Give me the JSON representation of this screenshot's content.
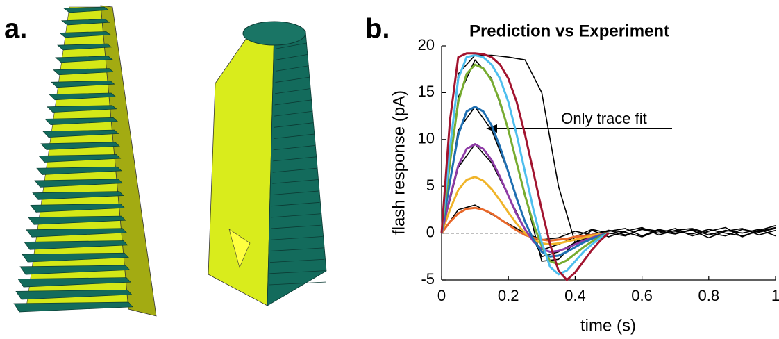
{
  "panel_labels": [
    "a.",
    "b."
  ],
  "chart_data": {
    "type": "line",
    "title": "Prediction vs Experiment",
    "x_label": "time (s)",
    "y_label": "flash response (pA)",
    "annotation": "Only trace fit",
    "xlim": [
      0,
      1
    ],
    "xticks": [
      0,
      0.2,
      0.4,
      0.6,
      0.8,
      1
    ],
    "ylim": [
      -5,
      20
    ],
    "yticks": [
      -5,
      0,
      5,
      10,
      15,
      20
    ],
    "dashed_line": {
      "y": 0,
      "x": [
        0,
        0.5
      ],
      "color": "#000000"
    },
    "series": [
      {
        "color": "#000000",
        "x": [
          0,
          0.05,
          0.1,
          0.15,
          0.2,
          0.25,
          0.3,
          0.35,
          0.4,
          0.45,
          0.5,
          0.55,
          0.6,
          0.65,
          0.7,
          0.75,
          0.8,
          0.85,
          0.9,
          0.95,
          1
        ],
        "values": [
          0,
          17,
          19,
          19,
          18.8,
          18.5,
          15,
          5,
          -1,
          -0.5,
          0.3,
          -0.2,
          0.4,
          0,
          0.5,
          -0.3,
          0.2,
          0.6,
          -0.4,
          0.3,
          0.8
        ]
      },
      {
        "color": "#000000",
        "x": [
          0,
          0.05,
          0.1,
          0.15,
          0.2,
          0.25,
          0.3,
          0.35,
          0.4,
          0.45,
          0.5,
          0.55,
          0.6,
          0.65,
          0.7,
          0.75,
          0.8,
          0.85,
          0.9,
          0.95,
          1
        ],
        "values": [
          0,
          11,
          13.5,
          11,
          6.5,
          1.2,
          -2.5,
          -2,
          -1,
          -0.3,
          0.2,
          0.5,
          -0.3,
          0.4,
          0,
          0.3,
          -0.5,
          0.2,
          0.5,
          -0.2,
          0.3
        ]
      },
      {
        "color": "#000000",
        "x": [
          0,
          0.05,
          0.1,
          0.15,
          0.2,
          0.25,
          0.3,
          0.35,
          0.4,
          0.45,
          0.5,
          0.55,
          0.6,
          0.65,
          0.7,
          0.75,
          0.8,
          0.85,
          0.9,
          0.95,
          1
        ],
        "values": [
          0,
          14.5,
          18.5,
          16.5,
          11,
          4,
          -3,
          -2.8,
          -1,
          0.3,
          -0.4,
          0.2,
          0.6,
          -0.2,
          0.3,
          0.5,
          0,
          -0.3,
          0.4,
          0.1,
          0.5
        ]
      },
      {
        "color": "#000000",
        "x": [
          0,
          0.05,
          0.1,
          0.15,
          0.2,
          0.25,
          0.3,
          0.35,
          0.4,
          0.45,
          0.5,
          0.55,
          0.6,
          0.65,
          0.7,
          0.75,
          0.8,
          0.85,
          0.9,
          0.95,
          1
        ],
        "values": [
          0,
          7,
          9.5,
          7.5,
          4,
          0.4,
          -1.8,
          -1.2,
          -0.4,
          0.4,
          0,
          -0.3,
          0.5,
          0.2,
          -0.1,
          0.4,
          -0.2,
          0.3,
          0,
          0.4,
          -0.3
        ]
      },
      {
        "color": "#000000",
        "x": [
          0,
          0.05,
          0.1,
          0.15,
          0.2,
          0.25,
          0.3,
          0.35,
          0.4,
          0.45,
          0.5,
          0.55,
          0.6,
          0.65,
          0.7,
          0.75,
          0.8,
          0.85,
          0.9,
          0.95,
          1
        ],
        "values": [
          0,
          2.5,
          3,
          2,
          1,
          0,
          -0.7,
          -0.5,
          0.2,
          -0.2,
          0.3,
          0.1,
          -0.4,
          0.3,
          0.2,
          -0.1,
          0.4,
          0,
          -0.3,
          0.2,
          0.6
        ]
      },
      {
        "color": "#e8682a",
        "x": [
          0,
          0.025,
          0.05,
          0.075,
          0.1,
          0.125,
          0.15,
          0.175,
          0.2,
          0.225,
          0.25,
          0.275,
          0.3,
          0.325,
          0.35,
          0.375,
          0.4,
          0.425,
          0.45,
          0.475,
          0.5
        ],
        "values": [
          0,
          1.2,
          2.1,
          2.6,
          2.7,
          2.5,
          2.1,
          1.5,
          0.9,
          0.3,
          -0.2,
          -0.5,
          -0.7,
          -0.8,
          -0.7,
          -0.6,
          -0.4,
          -0.3,
          -0.2,
          -0.1,
          0
        ]
      },
      {
        "color": "#f0b429",
        "x": [
          0,
          0.025,
          0.05,
          0.075,
          0.1,
          0.125,
          0.15,
          0.175,
          0.2,
          0.225,
          0.25,
          0.275,
          0.3,
          0.325,
          0.35,
          0.375,
          0.4,
          0.425,
          0.45,
          0.475,
          0.5
        ],
        "values": [
          0,
          2.5,
          4.6,
          5.7,
          6.0,
          5.6,
          4.7,
          3.5,
          2.2,
          1.0,
          0,
          -0.7,
          -1.1,
          -1.2,
          -1.1,
          -0.9,
          -0.7,
          -0.5,
          -0.3,
          -0.1,
          0
        ]
      },
      {
        "color": "#8e3ba6",
        "x": [
          0,
          0.025,
          0.05,
          0.075,
          0.1,
          0.125,
          0.15,
          0.175,
          0.2,
          0.225,
          0.25,
          0.275,
          0.3,
          0.325,
          0.35,
          0.375,
          0.4,
          0.425,
          0.45,
          0.475,
          0.5
        ],
        "values": [
          0,
          3.8,
          7.2,
          9.0,
          9.5,
          9.0,
          7.8,
          6.0,
          4.0,
          2.0,
          0.4,
          -0.9,
          -1.7,
          -2.0,
          -1.9,
          -1.6,
          -1.2,
          -0.8,
          -0.5,
          -0.2,
          0
        ]
      },
      {
        "color": "#1f6fb2",
        "x": [
          0,
          0.025,
          0.05,
          0.075,
          0.1,
          0.125,
          0.15,
          0.175,
          0.2,
          0.225,
          0.25,
          0.275,
          0.3,
          0.325,
          0.35,
          0.375,
          0.4,
          0.425,
          0.45,
          0.475,
          0.5
        ],
        "values": [
          0,
          5.5,
          10.5,
          13.0,
          13.5,
          13.0,
          11.5,
          9.2,
          6.5,
          3.7,
          1.2,
          -0.7,
          -2.0,
          -2.5,
          -2.4,
          -2.0,
          -1.5,
          -1.0,
          -0.6,
          -0.3,
          0
        ]
      },
      {
        "color": "#77ac30",
        "x": [
          0,
          0.025,
          0.05,
          0.075,
          0.1,
          0.125,
          0.15,
          0.175,
          0.2,
          0.225,
          0.25,
          0.275,
          0.3,
          0.325,
          0.35,
          0.375,
          0.4,
          0.425,
          0.45,
          0.475,
          0.5
        ],
        "values": [
          0,
          7.5,
          14,
          17,
          18,
          17.6,
          16.3,
          14,
          11,
          7.5,
          4,
          1,
          -1.4,
          -3.0,
          -3.3,
          -2.9,
          -2.2,
          -1.5,
          -0.9,
          -0.4,
          0
        ]
      },
      {
        "color": "#4dbeee",
        "x": [
          0,
          0.025,
          0.05,
          0.075,
          0.1,
          0.125,
          0.15,
          0.175,
          0.2,
          0.225,
          0.25,
          0.275,
          0.3,
          0.325,
          0.35,
          0.375,
          0.4,
          0.425,
          0.45,
          0.475,
          0.5
        ],
        "values": [
          0,
          9,
          16.5,
          18.8,
          19,
          18.8,
          18,
          16.5,
          14,
          10.5,
          6.5,
          2.5,
          -1,
          -3.6,
          -4.4,
          -4,
          -3,
          -2,
          -1.2,
          -0.5,
          0
        ]
      },
      {
        "color": "#a2142f",
        "x": [
          0,
          0.025,
          0.05,
          0.075,
          0.1,
          0.125,
          0.15,
          0.175,
          0.2,
          0.225,
          0.25,
          0.275,
          0.3,
          0.325,
          0.35,
          0.375,
          0.4,
          0.425,
          0.45,
          0.475,
          0.5
        ],
        "values": [
          0,
          12,
          18.8,
          19.2,
          19.2,
          19.1,
          18.8,
          18,
          16.5,
          14,
          10.5,
          6.5,
          2.5,
          -1.2,
          -4,
          -5,
          -4.2,
          -3,
          -1.8,
          -0.8,
          0
        ]
      }
    ]
  }
}
